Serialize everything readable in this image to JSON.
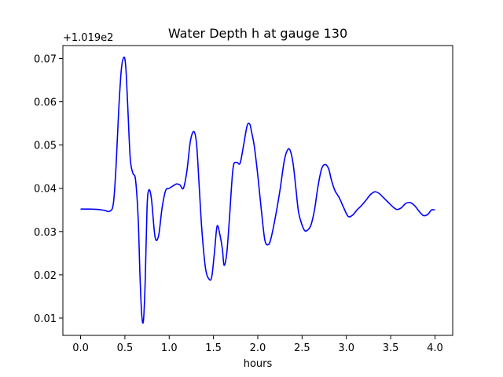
{
  "chart_data": {
    "type": "line",
    "title": "Water Depth h at gauge 130",
    "xlabel": "hours",
    "ylabel": "",
    "y_offset_label": "+1.019e2",
    "xlim": [
      -0.2,
      4.2
    ],
    "ylim": [
      0.006,
      0.073
    ],
    "xticks": [
      0.0,
      0.5,
      1.0,
      1.5,
      2.0,
      2.5,
      3.0,
      3.5,
      4.0
    ],
    "xtick_labels": [
      "0.0",
      "0.5",
      "1.0",
      "1.5",
      "2.0",
      "2.5",
      "3.0",
      "3.5",
      "4.0"
    ],
    "yticks": [
      0.01,
      0.02,
      0.03,
      0.04,
      0.05,
      0.06,
      0.07
    ],
    "ytick_labels": [
      "0.01",
      "0.02",
      "0.03",
      "0.04",
      "0.05",
      "0.06",
      "0.07"
    ],
    "grid": false,
    "series": [
      {
        "color": "#0000ff",
        "x": [
          0.0,
          0.1,
          0.2,
          0.27,
          0.33,
          0.37,
          0.4,
          0.43,
          0.46,
          0.49,
          0.51,
          0.53,
          0.56,
          0.59,
          0.62,
          0.65,
          0.67,
          0.69,
          0.71,
          0.73,
          0.75,
          0.77,
          0.8,
          0.84,
          0.88,
          0.92,
          0.96,
          1.0,
          1.04,
          1.08,
          1.12,
          1.16,
          1.2,
          1.24,
          1.28,
          1.31,
          1.34,
          1.37,
          1.41,
          1.45,
          1.48,
          1.51,
          1.54,
          1.57,
          1.6,
          1.62,
          1.65,
          1.68,
          1.72,
          1.76,
          1.8,
          1.84,
          1.88,
          1.91,
          1.93,
          1.96,
          2.0,
          2.04,
          2.08,
          2.12,
          2.15,
          2.2,
          2.25,
          2.3,
          2.34,
          2.37,
          2.4,
          2.43,
          2.46,
          2.5,
          2.53,
          2.56,
          2.6,
          2.64,
          2.68,
          2.72,
          2.76,
          2.8,
          2.83,
          2.87,
          2.92,
          2.97,
          3.02,
          3.07,
          3.12,
          3.17,
          3.22,
          3.27,
          3.32,
          3.37,
          3.42,
          3.47,
          3.52,
          3.57,
          3.62,
          3.67,
          3.72,
          3.77,
          3.82,
          3.87,
          3.92,
          3.96,
          4.0
        ],
        "y": [
          0.0352,
          0.0352,
          0.0351,
          0.0349,
          0.0347,
          0.0365,
          0.045,
          0.058,
          0.0675,
          0.0703,
          0.068,
          0.06,
          0.047,
          0.0435,
          0.042,
          0.033,
          0.02,
          0.0108,
          0.0095,
          0.019,
          0.0355,
          0.0396,
          0.0375,
          0.0288,
          0.029,
          0.0355,
          0.0395,
          0.04,
          0.0405,
          0.041,
          0.0408,
          0.04,
          0.044,
          0.051,
          0.0531,
          0.05,
          0.04,
          0.03,
          0.0215,
          0.019,
          0.0195,
          0.025,
          0.0312,
          0.0295,
          0.026,
          0.0222,
          0.025,
          0.033,
          0.0445,
          0.046,
          0.0458,
          0.05,
          0.0545,
          0.0548,
          0.053,
          0.0498,
          0.043,
          0.035,
          0.028,
          0.027,
          0.0285,
          0.0335,
          0.0395,
          0.0465,
          0.049,
          0.0485,
          0.0455,
          0.04,
          0.0345,
          0.0315,
          0.0302,
          0.0303,
          0.0315,
          0.035,
          0.0405,
          0.0445,
          0.0455,
          0.0445,
          0.042,
          0.0395,
          0.0378,
          0.0355,
          0.0335,
          0.0338,
          0.035,
          0.036,
          0.0372,
          0.0385,
          0.0392,
          0.0388,
          0.0378,
          0.0368,
          0.0358,
          0.0351,
          0.0355,
          0.0365,
          0.0367,
          0.036,
          0.0347,
          0.0337,
          0.034,
          0.035,
          0.035
        ]
      }
    ]
  }
}
